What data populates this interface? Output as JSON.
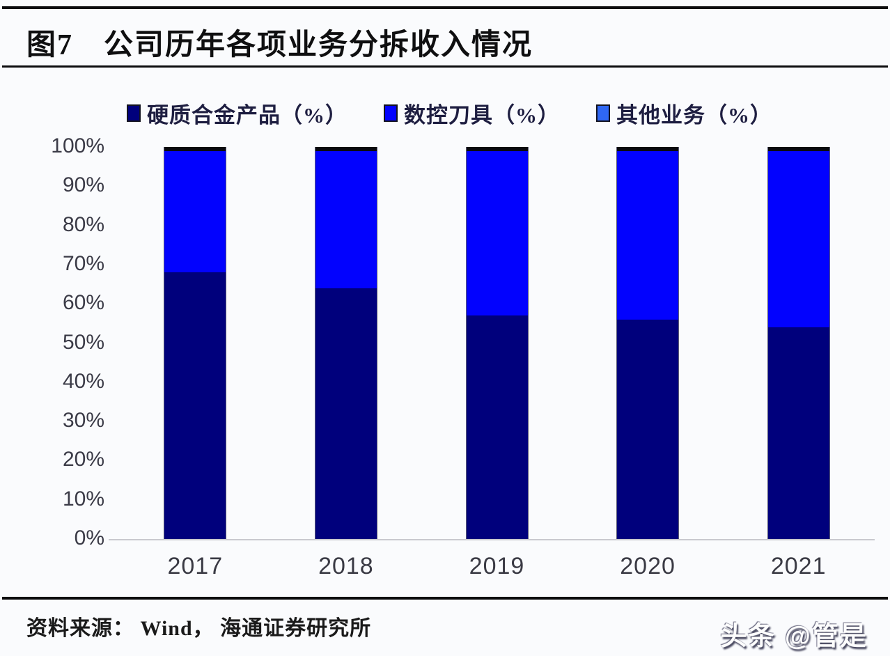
{
  "header": {
    "figure_label": "图7",
    "title": "公司历年各项业务分拆收入情况"
  },
  "source": {
    "label": "资料来源：",
    "text": " Wind， 海通证券研究所"
  },
  "watermark": "头条 @管是",
  "colors": {
    "hard_alloy_navy": "#00007c",
    "cnc_blue": "#0202fe",
    "other_bar_cap": "#0a0a0e",
    "other_legend_swatch": "#2f67f3",
    "axis_text": "#3b3b47",
    "legend_text": "#1e1e41",
    "rule_black": "#0c0c0e"
  },
  "chart_data": {
    "type": "bar",
    "stacked": true,
    "title": "图7 公司历年各项业务分拆收入情况",
    "categories": [
      "2017",
      "2018",
      "2019",
      "2020",
      "2021"
    ],
    "series": [
      {
        "name": "硬质合金产品（%）",
        "color": "#00007c",
        "legend_color": "#00007c",
        "values": [
          68,
          64,
          57,
          56,
          54
        ]
      },
      {
        "name": "数控刀具（%）",
        "color": "#0202fe",
        "legend_color": "#0202fe",
        "values": [
          31,
          35,
          42,
          43,
          45
        ]
      },
      {
        "name": "其他业务（%）",
        "color": "#0a0a0e",
        "legend_color": "#2f67f3",
        "values": [
          1,
          1,
          1,
          1,
          1
        ]
      }
    ],
    "xlabel": "",
    "ylabel": "",
    "ylim": [
      0,
      100
    ],
    "yticks": [
      "0%",
      "10%",
      "20%",
      "30%",
      "40%",
      "50%",
      "60%",
      "70%",
      "80%",
      "90%",
      "100%"
    ],
    "grid": false,
    "legend_position": "top"
  }
}
